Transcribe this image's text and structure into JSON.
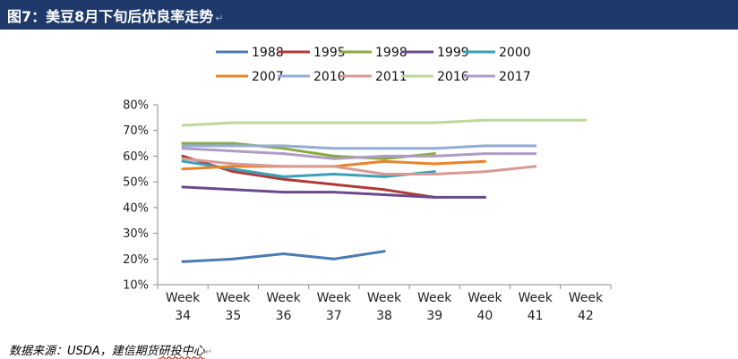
{
  "header": {
    "title": "图7：美豆8月下旬后优良率走势",
    "title_mark": "↵",
    "background": "#1f3a6a"
  },
  "footer": {
    "source_prefix": "数据来源：USDA，建信期货",
    "source_underlined": "研投中心",
    "source_mark": "↵"
  },
  "chart_data": {
    "type": "line",
    "title": "",
    "xlabel": "",
    "ylabel": "",
    "categories": [
      "Week 34",
      "Week 35",
      "Week 36",
      "Week 37",
      "Week 38",
      "Week 39",
      "Week 40",
      "Week 41",
      "Week 42"
    ],
    "y_ticks": [
      "10%",
      "20%",
      "30%",
      "40%",
      "50%",
      "60%",
      "70%",
      "80%"
    ],
    "ylim": [
      10,
      80
    ],
    "y_unit": "%",
    "grid": false,
    "legend_position": "top",
    "series": [
      {
        "name": "1988",
        "color": "#4a7ab5",
        "values": [
          19,
          20,
          22,
          20,
          23,
          null,
          null,
          null,
          null
        ]
      },
      {
        "name": "1995",
        "color": "#b03a36",
        "values": [
          60,
          54,
          51,
          49,
          47,
          44,
          null,
          null,
          null
        ]
      },
      {
        "name": "1998",
        "color": "#8aaa3c",
        "values": [
          65,
          65,
          63,
          60,
          59,
          61,
          null,
          null,
          null
        ]
      },
      {
        "name": "1999",
        "color": "#6a4a8c",
        "values": [
          48,
          47,
          46,
          46,
          45,
          44,
          44,
          null,
          null
        ]
      },
      {
        "name": "2000",
        "color": "#3aa0b8",
        "values": [
          58,
          55,
          52,
          53,
          52,
          54,
          null,
          null,
          null
        ]
      },
      {
        "name": "2007",
        "color": "#e8842a",
        "values": [
          55,
          56,
          56,
          56,
          58,
          57,
          58,
          null,
          null
        ]
      },
      {
        "name": "2010",
        "color": "#94acd6",
        "values": [
          64,
          64,
          64,
          63,
          63,
          63,
          64,
          64,
          null
        ]
      },
      {
        "name": "2011",
        "color": "#d89a94",
        "values": [
          59,
          57,
          56,
          56,
          53,
          53,
          54,
          56,
          null
        ]
      },
      {
        "name": "2016",
        "color": "#bcd89a",
        "values": [
          72,
          73,
          73,
          73,
          73,
          73,
          74,
          74,
          74
        ]
      },
      {
        "name": "2017",
        "color": "#ad9cc6",
        "values": [
          63,
          62,
          61,
          59,
          60,
          60,
          61,
          61,
          null
        ]
      }
    ]
  }
}
